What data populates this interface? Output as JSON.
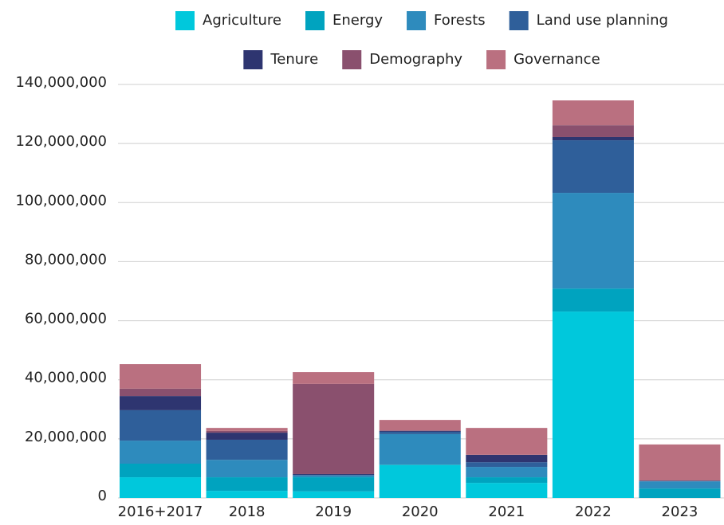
{
  "chart_data": {
    "type": "stacked_bar",
    "categories": [
      "2016+2017",
      "2018",
      "2019",
      "2020",
      "2021",
      "2022",
      "2023"
    ],
    "series": [
      {
        "name": "Agriculture",
        "color": "#00c8dc",
        "values": [
          7000000,
          2400000,
          2200000,
          11100000,
          5100000,
          63100000,
          0
        ]
      },
      {
        "name": "Energy",
        "color": "#00a3bf",
        "values": [
          4600000,
          4600000,
          4800000,
          200000,
          1900000,
          7800000,
          3200000
        ]
      },
      {
        "name": "Forests",
        "color": "#2e8bbd",
        "values": [
          7800000,
          5900000,
          600000,
          10300000,
          3500000,
          32400000,
          2400000
        ]
      },
      {
        "name": "Land use planning",
        "color": "#2f5f9a",
        "values": [
          10300000,
          6800000,
          200000,
          800000,
          1600000,
          17800000,
          200000
        ]
      },
      {
        "name": "Tenure",
        "color": "#2e3570",
        "values": [
          4800000,
          2400000,
          300000,
          300000,
          2500000,
          1100000,
          0
        ]
      },
      {
        "name": "Demography",
        "color": "#8a506e",
        "values": [
          2500000,
          600000,
          30500000,
          200000,
          0,
          4000000,
          0
        ]
      },
      {
        "name": "Governance",
        "color": "#ba7080",
        "values": [
          8300000,
          1000000,
          4000000,
          3500000,
          9100000,
          8400000,
          12300000
        ]
      }
    ],
    "ylim": [
      0,
      140000000
    ],
    "yticks": [
      0,
      {
        "value": 20000000,
        "label": "20,000,000"
      },
      {
        "value": 40000000,
        "label": "40,000,000"
      },
      {
        "value": 60000000,
        "label": "60,000,000"
      },
      {
        "value": 80000000,
        "label": "80,000,000"
      },
      {
        "value": 100000000,
        "label": "100,000,000"
      },
      {
        "value": 120000000,
        "label": "120,000,000"
      },
      {
        "value": 140000000,
        "label": "140,000,000"
      }
    ],
    "grid": true
  }
}
